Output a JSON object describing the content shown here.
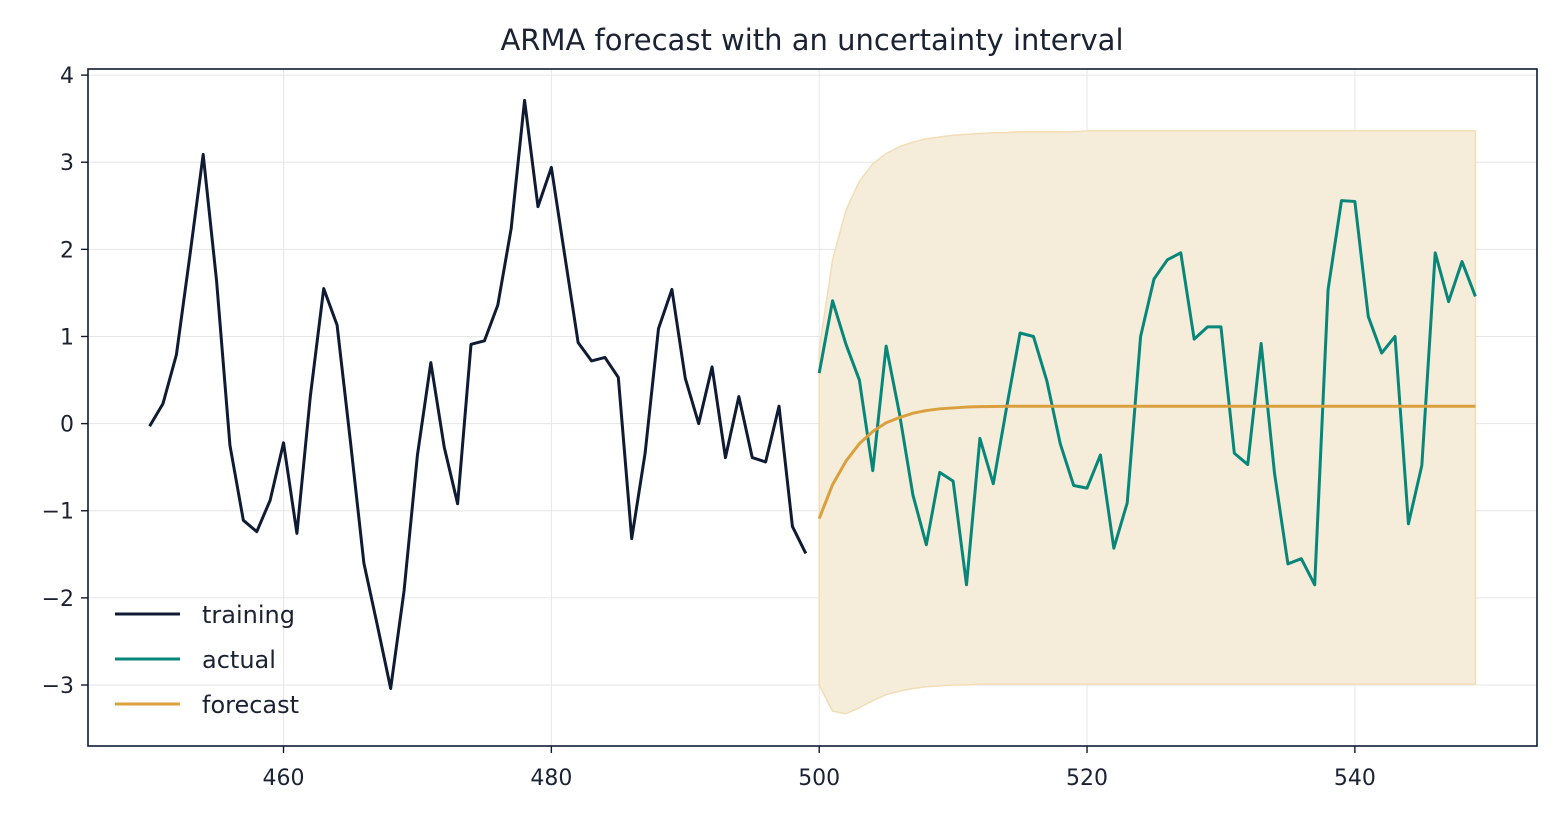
{
  "chart_data": {
    "type": "line",
    "title": "ARMA forecast with an uncertainty interval",
    "xlabel": "",
    "ylabel": "",
    "xlim": [
      445.4,
      553.6
    ],
    "ylim": [
      -3.7,
      4.07
    ],
    "xticks": [
      460,
      480,
      500,
      520,
      540
    ],
    "yticks": [
      -3,
      -2,
      -1,
      0,
      1,
      2,
      3,
      4
    ],
    "grid": true,
    "legend": {
      "placement": "lower-left",
      "entries": [
        "training",
        "actual",
        "forecast"
      ]
    },
    "colors": {
      "training": "#0f1b33",
      "actual": "#07877a",
      "forecast": "#dba03e",
      "band": "#f6ecda",
      "band_edge": "#f2ddb7",
      "axes": "#0f1b33",
      "text": "#1a2233"
    },
    "series": [
      {
        "name": "training",
        "x_start": 450,
        "values": [
          -0.03,
          0.23,
          0.79,
          1.92,
          3.09,
          1.64,
          -0.25,
          -1.11,
          -1.24,
          -0.88,
          -0.22,
          -1.26,
          0.31,
          1.55,
          1.13,
          -0.21,
          -1.6,
          -2.31,
          -3.04,
          -1.92,
          -0.36,
          0.7,
          -0.27,
          -0.92,
          0.91,
          0.95,
          1.36,
          2.24,
          3.71,
          2.49,
          2.94,
          1.93,
          0.93,
          0.72,
          0.76,
          0.53,
          -1.32,
          -0.34,
          1.09,
          1.54,
          0.52,
          0.0,
          0.65,
          -0.39,
          0.31,
          -0.39,
          -0.44,
          0.2,
          -1.18,
          -1.49
        ]
      },
      {
        "name": "actual",
        "x_start": 500,
        "values": [
          0.58,
          1.41,
          0.91,
          0.5,
          -0.54,
          0.89,
          0.11,
          -0.82,
          -1.39,
          -0.56,
          -0.66,
          -1.85,
          -0.17,
          -0.69,
          0.19,
          1.04,
          1.0,
          0.49,
          -0.23,
          -0.71,
          -0.74,
          -0.36,
          -1.43,
          -0.91,
          1.0,
          1.66,
          1.88,
          1.96,
          0.97,
          1.11,
          1.11,
          -0.34,
          -0.47,
          0.92,
          -0.57,
          -1.61,
          -1.55,
          -1.85,
          1.54,
          2.56,
          2.55,
          1.23,
          0.81,
          1.0,
          -1.15,
          -0.48,
          1.96,
          1.4,
          1.86,
          1.46
        ]
      },
      {
        "name": "forecast",
        "x_start": 500,
        "values": [
          -1.09,
          -0.7,
          -0.43,
          -0.23,
          -0.09,
          0.01,
          0.07,
          0.12,
          0.15,
          0.17,
          0.18,
          0.19,
          0.195,
          0.197,
          0.199,
          0.2,
          0.2,
          0.2,
          0.2,
          0.2,
          0.2,
          0.2,
          0.2,
          0.2,
          0.2,
          0.2,
          0.2,
          0.2,
          0.2,
          0.2,
          0.2,
          0.2,
          0.2,
          0.2,
          0.2,
          0.2,
          0.2,
          0.2,
          0.2,
          0.2,
          0.2,
          0.2,
          0.2,
          0.2,
          0.2,
          0.2,
          0.2,
          0.2,
          0.2,
          0.2
        ]
      }
    ],
    "interval": {
      "x_start": 500,
      "upper": [
        0.85,
        1.88,
        2.45,
        2.78,
        2.98,
        3.1,
        3.18,
        3.23,
        3.27,
        3.29,
        3.31,
        3.32,
        3.33,
        3.34,
        3.34,
        3.35,
        3.35,
        3.35,
        3.35,
        3.35,
        3.36,
        3.36,
        3.36,
        3.36,
        3.36,
        3.36,
        3.36,
        3.36,
        3.36,
        3.36,
        3.36,
        3.36,
        3.36,
        3.36,
        3.36,
        3.36,
        3.36,
        3.36,
        3.36,
        3.36,
        3.36,
        3.36,
        3.36,
        3.36,
        3.36,
        3.36,
        3.36,
        3.36,
        3.36,
        3.36
      ],
      "lower": [
        -3.0,
        -3.3,
        -3.33,
        -3.26,
        -3.18,
        -3.11,
        -3.07,
        -3.04,
        -3.02,
        -3.01,
        -3.0,
        -3.0,
        -2.99,
        -2.99,
        -2.99,
        -2.99,
        -2.99,
        -2.99,
        -2.99,
        -2.99,
        -2.99,
        -2.99,
        -2.99,
        -2.99,
        -2.99,
        -2.99,
        -2.99,
        -2.99,
        -2.99,
        -2.99,
        -2.99,
        -2.99,
        -2.99,
        -2.99,
        -2.99,
        -2.99,
        -2.99,
        -2.99,
        -2.99,
        -2.99,
        -2.99,
        -2.99,
        -2.99,
        -2.99,
        -2.99,
        -2.99,
        -2.99,
        -2.99,
        -2.99,
        -2.99
      ]
    }
  }
}
